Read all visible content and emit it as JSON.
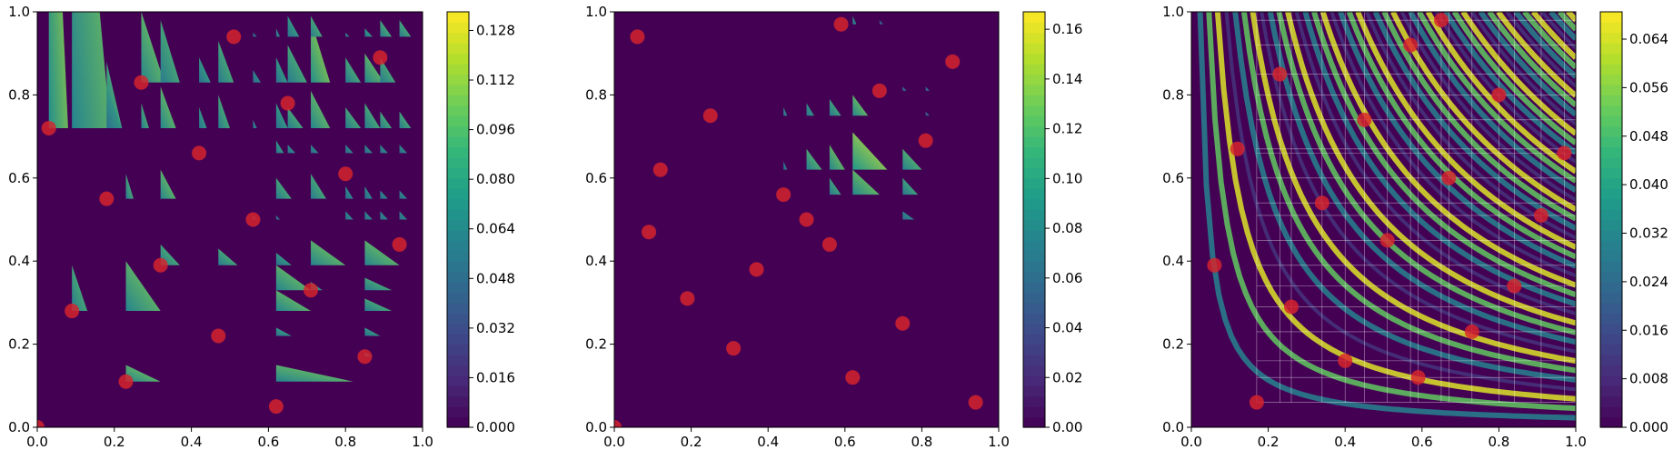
{
  "figure": {
    "panels": [
      {
        "id": "panel-1",
        "colorbar_ticks": [
          "0.000",
          "0.016",
          "0.032",
          "0.048",
          "0.064",
          "0.080",
          "0.096",
          "0.112",
          "0.128"
        ]
      },
      {
        "id": "panel-2",
        "colorbar_ticks": [
          "0.00",
          "0.02",
          "0.04",
          "0.06",
          "0.08",
          "0.10",
          "0.12",
          "0.14",
          "0.16"
        ]
      },
      {
        "id": "panel-3",
        "colorbar_ticks": [
          "0.000",
          "0.008",
          "0.016",
          "0.024",
          "0.032",
          "0.040",
          "0.048",
          "0.056",
          "0.064"
        ]
      }
    ]
  },
  "colors": {
    "background": "#440154",
    "sample_point": "#d9232b",
    "viridis": [
      "#440154",
      "#482878",
      "#3e4989",
      "#31688e",
      "#26828e",
      "#1f9e89",
      "#35b779",
      "#6ece58",
      "#b5de2b",
      "#fde725"
    ]
  },
  "chart_data": [
    {
      "type": "heatmap",
      "xlim": [
        0,
        1
      ],
      "ylim": [
        0,
        1
      ],
      "x_ticks": [
        "0.0",
        "0.2",
        "0.4",
        "0.6",
        "0.8",
        "1.0"
      ],
      "y_ticks": [
        "0.0",
        "0.2",
        "0.4",
        "0.6",
        "0.8",
        "1.0"
      ],
      "colorbar_range": [
        0,
        0.134
      ],
      "colorbar_ticks": [
        0.0,
        0.016,
        0.032,
        0.048,
        0.064,
        0.08,
        0.096,
        0.112,
        0.128
      ],
      "points": [
        [
          0.0,
          0.0
        ],
        [
          0.03,
          0.72
        ],
        [
          0.09,
          0.28
        ],
        [
          0.18,
          0.55
        ],
        [
          0.23,
          0.11
        ],
        [
          0.27,
          0.83
        ],
        [
          0.32,
          0.39
        ],
        [
          0.42,
          0.66
        ],
        [
          0.47,
          0.22
        ],
        [
          0.51,
          0.94
        ],
        [
          0.56,
          0.5
        ],
        [
          0.62,
          0.05
        ],
        [
          0.65,
          0.78
        ],
        [
          0.71,
          0.33
        ],
        [
          0.8,
          0.61
        ],
        [
          0.85,
          0.17
        ],
        [
          0.89,
          0.89
        ],
        [
          0.94,
          0.44
        ]
      ],
      "triangles": [
        [
          0.03,
          0.72,
          0.05,
          1.0,
          0.12
        ],
        [
          0.09,
          0.72,
          0.1,
          1.0,
          0.11
        ],
        [
          0.18,
          0.72,
          0.04,
          0.16,
          0.1
        ],
        [
          0.27,
          0.83,
          0.06,
          0.17,
          0.11
        ],
        [
          0.32,
          0.83,
          0.05,
          0.15,
          0.1
        ],
        [
          0.42,
          0.83,
          0.03,
          0.06,
          0.09
        ],
        [
          0.47,
          0.83,
          0.04,
          0.1,
          0.1
        ],
        [
          0.56,
          0.83,
          0.02,
          0.03,
          0.08
        ],
        [
          0.62,
          0.83,
          0.03,
          0.06,
          0.09
        ],
        [
          0.65,
          0.83,
          0.05,
          0.09,
          0.1
        ],
        [
          0.71,
          0.83,
          0.05,
          0.15,
          0.12
        ],
        [
          0.8,
          0.83,
          0.04,
          0.06,
          0.1
        ],
        [
          0.85,
          0.83,
          0.05,
          0.07,
          0.11
        ],
        [
          0.89,
          0.83,
          0.04,
          0.06,
          0.1
        ],
        [
          0.56,
          0.94,
          0.01,
          0.01,
          0.07
        ],
        [
          0.62,
          0.94,
          0.01,
          0.02,
          0.08
        ],
        [
          0.65,
          0.94,
          0.03,
          0.05,
          0.09
        ],
        [
          0.71,
          0.94,
          0.03,
          0.05,
          0.1
        ],
        [
          0.8,
          0.94,
          0.01,
          0.01,
          0.08
        ],
        [
          0.85,
          0.94,
          0.02,
          0.02,
          0.09
        ],
        [
          0.89,
          0.94,
          0.03,
          0.04,
          0.1
        ],
        [
          0.94,
          0.94,
          0.03,
          0.04,
          0.1
        ],
        [
          0.18,
          0.72,
          0.04,
          0.1,
          0.09
        ],
        [
          0.27,
          0.72,
          0.02,
          0.06,
          0.1
        ],
        [
          0.32,
          0.72,
          0.04,
          0.1,
          0.11
        ],
        [
          0.42,
          0.72,
          0.02,
          0.05,
          0.09
        ],
        [
          0.47,
          0.72,
          0.03,
          0.08,
          0.1
        ],
        [
          0.56,
          0.72,
          0.01,
          0.02,
          0.08
        ],
        [
          0.62,
          0.72,
          0.03,
          0.06,
          0.09
        ],
        [
          0.65,
          0.72,
          0.04,
          0.05,
          0.1
        ],
        [
          0.71,
          0.72,
          0.05,
          0.09,
          0.11
        ],
        [
          0.8,
          0.72,
          0.04,
          0.05,
          0.1
        ],
        [
          0.85,
          0.72,
          0.04,
          0.06,
          0.1
        ],
        [
          0.89,
          0.72,
          0.03,
          0.04,
          0.1
        ],
        [
          0.94,
          0.72,
          0.03,
          0.04,
          0.1
        ],
        [
          0.62,
          0.66,
          0.02,
          0.03,
          0.09
        ],
        [
          0.65,
          0.66,
          0.02,
          0.02,
          0.08
        ],
        [
          0.71,
          0.66,
          0.02,
          0.02,
          0.08
        ],
        [
          0.8,
          0.66,
          0.02,
          0.02,
          0.08
        ],
        [
          0.85,
          0.66,
          0.02,
          0.02,
          0.08
        ],
        [
          0.89,
          0.66,
          0.02,
          0.02,
          0.08
        ],
        [
          0.94,
          0.66,
          0.02,
          0.02,
          0.08
        ],
        [
          0.23,
          0.55,
          0.02,
          0.06,
          0.1
        ],
        [
          0.32,
          0.55,
          0.04,
          0.07,
          0.11
        ],
        [
          0.62,
          0.55,
          0.04,
          0.05,
          0.1
        ],
        [
          0.71,
          0.55,
          0.04,
          0.06,
          0.1
        ],
        [
          0.8,
          0.55,
          0.02,
          0.03,
          0.08
        ],
        [
          0.85,
          0.55,
          0.02,
          0.03,
          0.08
        ],
        [
          0.89,
          0.55,
          0.02,
          0.02,
          0.08
        ],
        [
          0.94,
          0.55,
          0.02,
          0.02,
          0.08
        ],
        [
          0.56,
          0.5,
          0.01,
          0.01,
          0.07
        ],
        [
          0.62,
          0.5,
          0.01,
          0.01,
          0.07
        ],
        [
          0.8,
          0.5,
          0.02,
          0.02,
          0.08
        ],
        [
          0.85,
          0.5,
          0.02,
          0.02,
          0.08
        ],
        [
          0.89,
          0.5,
          0.02,
          0.02,
          0.08
        ],
        [
          0.94,
          0.5,
          0.02,
          0.02,
          0.08
        ],
        [
          0.09,
          0.28,
          0.04,
          0.11,
          0.1
        ],
        [
          0.23,
          0.28,
          0.09,
          0.12,
          0.11
        ],
        [
          0.32,
          0.39,
          0.05,
          0.05,
          0.1
        ],
        [
          0.47,
          0.39,
          0.05,
          0.04,
          0.1
        ],
        [
          0.62,
          0.39,
          0.04,
          0.03,
          0.09
        ],
        [
          0.71,
          0.39,
          0.09,
          0.06,
          0.11
        ],
        [
          0.85,
          0.39,
          0.09,
          0.06,
          0.11
        ],
        [
          0.62,
          0.33,
          0.09,
          0.06,
          0.11
        ],
        [
          0.71,
          0.33,
          0.03,
          0.02,
          0.09
        ],
        [
          0.85,
          0.33,
          0.07,
          0.03,
          0.1
        ],
        [
          0.62,
          0.28,
          0.09,
          0.05,
          0.11
        ],
        [
          0.85,
          0.28,
          0.07,
          0.03,
          0.1
        ],
        [
          0.62,
          0.22,
          0.04,
          0.02,
          0.09
        ],
        [
          0.85,
          0.22,
          0.04,
          0.02,
          0.09
        ],
        [
          0.85,
          0.17,
          0.02,
          0.01,
          0.08
        ],
        [
          0.23,
          0.11,
          0.09,
          0.04,
          0.11
        ],
        [
          0.62,
          0.11,
          0.2,
          0.04,
          0.11
        ]
      ]
    },
    {
      "type": "heatmap",
      "xlim": [
        0,
        1
      ],
      "ylim": [
        0,
        1
      ],
      "x_ticks": [
        "0.0",
        "0.2",
        "0.4",
        "0.6",
        "0.8",
        "1.0"
      ],
      "y_ticks": [
        "0.0",
        "0.2",
        "0.4",
        "0.6",
        "0.8",
        "1.0"
      ],
      "colorbar_range": [
        0,
        0.167
      ],
      "colorbar_ticks": [
        0.0,
        0.02,
        0.04,
        0.06,
        0.08,
        0.1,
        0.12,
        0.14,
        0.16
      ],
      "points": [
        [
          0.0,
          0.0
        ],
        [
          0.06,
          0.94
        ],
        [
          0.09,
          0.47
        ],
        [
          0.12,
          0.62
        ],
        [
          0.19,
          0.31
        ],
        [
          0.25,
          0.75
        ],
        [
          0.31,
          0.19
        ],
        [
          0.37,
          0.38
        ],
        [
          0.44,
          0.56
        ],
        [
          0.5,
          0.5
        ],
        [
          0.56,
          0.44
        ],
        [
          0.59,
          0.97
        ],
        [
          0.62,
          0.12
        ],
        [
          0.69,
          0.81
        ],
        [
          0.75,
          0.25
        ],
        [
          0.81,
          0.69
        ],
        [
          0.88,
          0.88
        ],
        [
          0.94,
          0.06
        ]
      ],
      "triangles": [
        [
          0.62,
          0.97,
          0.01,
          0.02,
          0.1
        ],
        [
          0.69,
          0.97,
          0.01,
          0.01,
          0.07
        ],
        [
          0.44,
          0.75,
          0.01,
          0.02,
          0.1
        ],
        [
          0.5,
          0.75,
          0.02,
          0.03,
          0.11
        ],
        [
          0.56,
          0.75,
          0.03,
          0.04,
          0.12
        ],
        [
          0.62,
          0.75,
          0.04,
          0.05,
          0.14
        ],
        [
          0.75,
          0.81,
          0.01,
          0.01,
          0.08
        ],
        [
          0.81,
          0.81,
          0.01,
          0.01,
          0.08
        ],
        [
          0.81,
          0.75,
          0.01,
          0.01,
          0.07
        ],
        [
          0.44,
          0.62,
          0.01,
          0.02,
          0.09
        ],
        [
          0.5,
          0.62,
          0.04,
          0.05,
          0.13
        ],
        [
          0.56,
          0.62,
          0.04,
          0.06,
          0.14
        ],
        [
          0.62,
          0.62,
          0.09,
          0.09,
          0.16
        ],
        [
          0.75,
          0.62,
          0.05,
          0.05,
          0.13
        ],
        [
          0.56,
          0.56,
          0.03,
          0.04,
          0.12
        ],
        [
          0.62,
          0.56,
          0.07,
          0.06,
          0.14
        ],
        [
          0.75,
          0.56,
          0.04,
          0.04,
          0.12
        ],
        [
          0.75,
          0.5,
          0.03,
          0.02,
          0.1
        ]
      ]
    },
    {
      "type": "heatmap",
      "xlim": [
        0,
        1
      ],
      "ylim": [
        0,
        1
      ],
      "x_ticks": [
        "0.0",
        "0.2",
        "0.4",
        "0.6",
        "0.8",
        "1.0"
      ],
      "y_ticks": [
        "0.0",
        "0.2",
        "0.4",
        "0.6",
        "0.8",
        "1.0"
      ],
      "colorbar_range": [
        0,
        0.0685
      ],
      "colorbar_ticks": [
        0.0,
        0.008,
        0.016,
        0.024,
        0.032,
        0.04,
        0.048,
        0.056,
        0.064
      ],
      "points": [
        [
          0.06,
          0.39
        ],
        [
          0.12,
          0.67
        ],
        [
          0.17,
          0.06
        ],
        [
          0.23,
          0.85
        ],
        [
          0.26,
          0.29
        ],
        [
          0.34,
          0.54
        ],
        [
          0.4,
          0.16
        ],
        [
          0.45,
          0.74
        ],
        [
          0.51,
          0.45
        ],
        [
          0.57,
          0.92
        ],
        [
          0.59,
          0.12
        ],
        [
          0.65,
          0.98
        ],
        [
          0.67,
          0.6
        ],
        [
          0.73,
          0.23
        ],
        [
          0.8,
          0.8
        ],
        [
          0.84,
          0.34
        ],
        [
          0.91,
          0.51
        ],
        [
          0.97,
          0.66
        ]
      ],
      "grid_x": [
        0.17,
        0.23,
        0.26,
        0.34,
        0.4,
        0.45,
        0.51,
        0.57,
        0.59,
        0.65,
        0.67,
        0.73,
        0.8,
        0.84,
        0.91,
        0.97
      ],
      "grid_y": [
        0.06,
        0.12,
        0.16,
        0.23,
        0.29,
        0.34,
        0.39,
        0.45,
        0.51,
        0.54,
        0.6,
        0.66,
        0.67,
        0.74,
        0.8,
        0.85,
        0.92,
        0.98
      ]
    }
  ]
}
